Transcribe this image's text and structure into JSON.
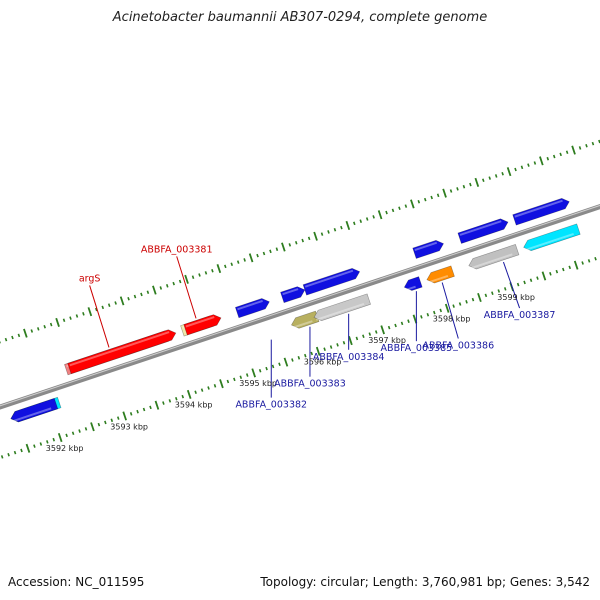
{
  "title": "Acinetobacter baumannii AB307-0294, complete genome",
  "footer": {
    "accession": "Accession: NC_011595",
    "topology": "Topology: circular; Length: 3,760,981 bp; Genes: 3,542"
  },
  "colors": {
    "background": "#ffffff",
    "backbone": "#8a8a8a",
    "ticks": "#2e7d1f",
    "label_red": "#cc0000",
    "label_blue": "#1a1aa0"
  },
  "scale_ticks": [
    {
      "label": "3592 kbp",
      "kbp": 3592
    },
    {
      "label": "3593 kbp",
      "kbp": 3593
    },
    {
      "label": "3594 kbp",
      "kbp": 3594
    },
    {
      "label": "3595 kbp",
      "kbp": 3595
    },
    {
      "label": "3596 kbp",
      "kbp": 3596
    },
    {
      "label": "3597 kbp",
      "kbp": 3597
    },
    {
      "label": "3598 kbp",
      "kbp": 3598
    },
    {
      "label": "3599 kbp",
      "kbp": 3599
    }
  ],
  "features": [
    {
      "id": "cyan-left",
      "color": "#00e5ff",
      "strand": -1,
      "start": 3591.4,
      "end": 3592.15
    },
    {
      "id": "blue-left",
      "color": "#1010e0",
      "strand": -1,
      "start": 3591.4,
      "end": 3592.1
    },
    {
      "id": "argS-rna",
      "color": "#f08080",
      "strand": 1,
      "start": 3592.4,
      "end": 3594.05
    },
    {
      "id": "argS-cds",
      "color": "#ff0000",
      "strand": 1,
      "start": 3592.45,
      "end": 3594.1
    },
    {
      "id": "003381-rna",
      "color": "#eee8aa",
      "strand": 1,
      "start": 3594.2,
      "end": 3594.75
    },
    {
      "id": "003381-cds",
      "color": "#ff0000",
      "strand": 1,
      "start": 3594.25,
      "end": 3594.8
    },
    {
      "id": "003382",
      "color": "#1010e0",
      "strand": 1,
      "start": 3595.05,
      "end": 3595.55
    },
    {
      "id": "003383-a",
      "color": "#1010e0",
      "strand": 1,
      "start": 3595.75,
      "end": 3596.1
    },
    {
      "id": "003383-b",
      "color": "#b8b060",
      "strand": -1,
      "start": 3595.75,
      "end": 3596.15
    },
    {
      "id": "003384-a",
      "color": "#1010e0",
      "strand": 1,
      "start": 3596.1,
      "end": 3596.95
    },
    {
      "id": "003384-b",
      "color": "#c8c8c8",
      "strand": -1,
      "start": 3596.1,
      "end": 3596.95
    },
    {
      "id": "003385",
      "color": "#1010e0",
      "strand": -1,
      "start": 3597.5,
      "end": 3597.75
    },
    {
      "id": "003386-a",
      "color": "#1010e0",
      "strand": 1,
      "start": 3597.8,
      "end": 3598.25
    },
    {
      "id": "003386-b",
      "color": "#ff8c00",
      "strand": -1,
      "start": 3597.85,
      "end": 3598.25
    },
    {
      "id": "003387-a",
      "color": "#1010e0",
      "strand": 1,
      "start": 3598.5,
      "end": 3599.25
    },
    {
      "id": "003387-b",
      "color": "#c0c0c0",
      "strand": -1,
      "start": 3598.5,
      "end": 3599.25
    },
    {
      "id": "right-blue",
      "color": "#1010e0",
      "strand": 1,
      "start": 3599.35,
      "end": 3600.2
    },
    {
      "id": "right-cyan",
      "color": "#00e5ff",
      "strand": -1,
      "start": 3599.35,
      "end": 3600.2
    }
  ],
  "gene_labels": [
    {
      "text": "argS",
      "color": "#cc0000",
      "anchor_kbp": 3593.1,
      "side": "top",
      "offset_kbp": -0.3,
      "lift": 62
    },
    {
      "text": "ABBFA_003381",
      "color": "#cc0000",
      "anchor_kbp": 3594.45,
      "side": "top",
      "offset_kbp": -0.3,
      "lift": 62
    },
    {
      "text": "ABBFA_003382",
      "color": "#1a1aa0",
      "anchor_kbp": 3595.4,
      "side": "bottom",
      "offset_kbp": 0,
      "lift": 58
    },
    {
      "text": "ABBFA_003383",
      "color": "#1a1aa0",
      "anchor_kbp": 3596.0,
      "side": "bottom",
      "offset_kbp": 0,
      "lift": 50
    },
    {
      "text": "ABBFA_003384",
      "color": "#1a1aa0",
      "anchor_kbp": 3596.6,
      "side": "bottom",
      "offset_kbp": 0,
      "lift": 36
    },
    {
      "text": "ABBFA_003385",
      "color": "#1a1aa0",
      "anchor_kbp": 3597.65,
      "side": "bottom",
      "offset_kbp": 0,
      "lift": 50
    },
    {
      "text": "ABBFA_003386",
      "color": "#1a1aa0",
      "anchor_kbp": 3598.05,
      "side": "bottom",
      "offset_kbp": 0.25,
      "lift": 56
    },
    {
      "text": "ABBFA_003387",
      "color": "#1a1aa0",
      "anchor_kbp": 3599.0,
      "side": "bottom",
      "offset_kbp": 0.25,
      "lift": 46
    }
  ]
}
